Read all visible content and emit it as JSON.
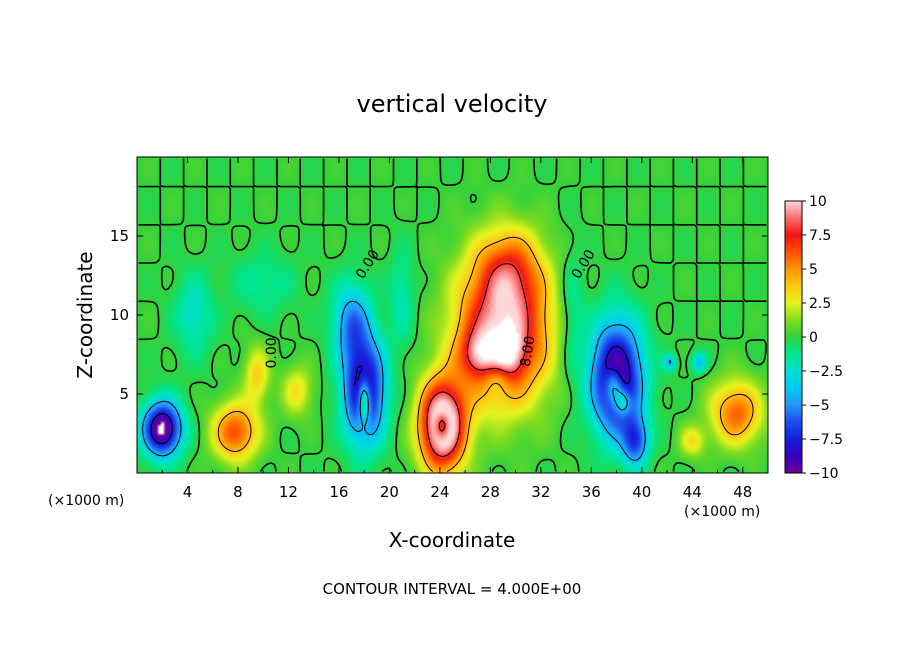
{
  "chart_data": {
    "type": "heatmap",
    "title": "vertical velocity",
    "xlabel": "X-coordinate",
    "ylabel": "Z-coordinate",
    "x_unit_left": "(×1000 m)",
    "x_unit_right": "(×1000 m)",
    "xlim": [
      0,
      50
    ],
    "ylim": [
      0,
      20
    ],
    "x_ticks": [
      4,
      8,
      12,
      16,
      20,
      24,
      28,
      32,
      36,
      40,
      44,
      48
    ],
    "y_ticks": [
      5,
      10,
      15
    ],
    "colorbar": {
      "min": -10,
      "max": 10,
      "ticks": [
        10,
        7.5,
        5,
        2.5,
        0,
        -2.5,
        -5,
        -7.5,
        -10
      ],
      "tick_labels": [
        "10",
        "7.5",
        "5",
        "2.5",
        "0",
        "−2.5",
        "−5",
        "−7.5",
        "−10"
      ]
    },
    "contour_labels": [
      {
        "text": "0.00",
        "x": 18.3,
        "y": 13.2,
        "rot": -58
      },
      {
        "text": "0.00",
        "x": 35.4,
        "y": 13.2,
        "rot": -58
      },
      {
        "text": "0.00",
        "x": 10.7,
        "y": 7.6,
        "rot": -90
      },
      {
        "text": "8.00",
        "x": 31.0,
        "y": 7.7,
        "rot": -80
      }
    ],
    "footer": "CONTOUR INTERVAL = 4.000E+00",
    "cells": [
      {
        "x": 2.0,
        "y": 2.8,
        "sx": 1.5,
        "sy": 1.7,
        "a": -11
      },
      {
        "x": 7.8,
        "y": 2.6,
        "sx": 1.8,
        "sy": 1.8,
        "a": 6.5
      },
      {
        "x": 9.5,
        "y": 6.2,
        "sx": 1.0,
        "sy": 1.8,
        "a": 3.5
      },
      {
        "x": 12.7,
        "y": 5.2,
        "sx": 1.2,
        "sy": 1.6,
        "a": 3.0
      },
      {
        "x": 18.0,
        "y": 5.2,
        "sx": 1.6,
        "sy": 3.2,
        "a": -10
      },
      {
        "x": 18.0,
        "y": 4.6,
        "sx": 0.5,
        "sy": 1.4,
        "a": 8
      },
      {
        "x": 17.0,
        "y": 9.5,
        "sx": 1.5,
        "sy": 2.5,
        "a": -5
      },
      {
        "x": 24.2,
        "y": 3.0,
        "sx": 1.8,
        "sy": 2.8,
        "a": 13
      },
      {
        "x": 24.2,
        "y": 3.0,
        "sx": 0.6,
        "sy": 0.9,
        "a": -6
      },
      {
        "x": 29.0,
        "y": 9.0,
        "sx": 3.6,
        "sy": 4.5,
        "a": 10
      },
      {
        "x": 29.5,
        "y": 13.0,
        "sx": 2.5,
        "sy": 2.5,
        "a": 4
      },
      {
        "x": 27.0,
        "y": 7.5,
        "sx": 1.5,
        "sy": 1.5,
        "a": 4
      },
      {
        "x": 29.5,
        "y": 7.5,
        "sx": 1.2,
        "sy": 1.5,
        "a": 3
      },
      {
        "x": 28.5,
        "y": 6.0,
        "sx": 1.0,
        "sy": 1.0,
        "a": -2.5
      },
      {
        "x": 38.0,
        "y": 6.0,
        "sx": 2.0,
        "sy": 3.5,
        "a": -11
      },
      {
        "x": 37.8,
        "y": 5.5,
        "sx": 0.7,
        "sy": 1.2,
        "a": 6
      },
      {
        "x": 38.5,
        "y": 4.5,
        "sx": 0.6,
        "sy": 0.8,
        "a": 5
      },
      {
        "x": 39.5,
        "y": 2.0,
        "sx": 1.0,
        "sy": 1.5,
        "a": -6
      },
      {
        "x": 42.2,
        "y": 7.0,
        "sx": 0.5,
        "sy": 0.5,
        "a": -4
      },
      {
        "x": 44.5,
        "y": 7.0,
        "sx": 0.6,
        "sy": 0.6,
        "a": -4
      },
      {
        "x": 47.5,
        "y": 3.8,
        "sx": 2.0,
        "sy": 2.0,
        "a": 6
      },
      {
        "x": 44.0,
        "y": 2.0,
        "sx": 1.0,
        "sy": 1.0,
        "a": 3
      },
      {
        "x": 4.5,
        "y": 10.0,
        "sx": 1.5,
        "sy": 2.5,
        "a": -2.5
      },
      {
        "x": 10.0,
        "y": 12.0,
        "sx": 2.5,
        "sy": 2.0,
        "a": -1.5
      },
      {
        "x": 21.0,
        "y": 11.0,
        "sx": 1.0,
        "sy": 3.0,
        "a": -2
      },
      {
        "x": 34.5,
        "y": 10.0,
        "sx": 1.0,
        "sy": 4.0,
        "a": -2
      }
    ]
  }
}
